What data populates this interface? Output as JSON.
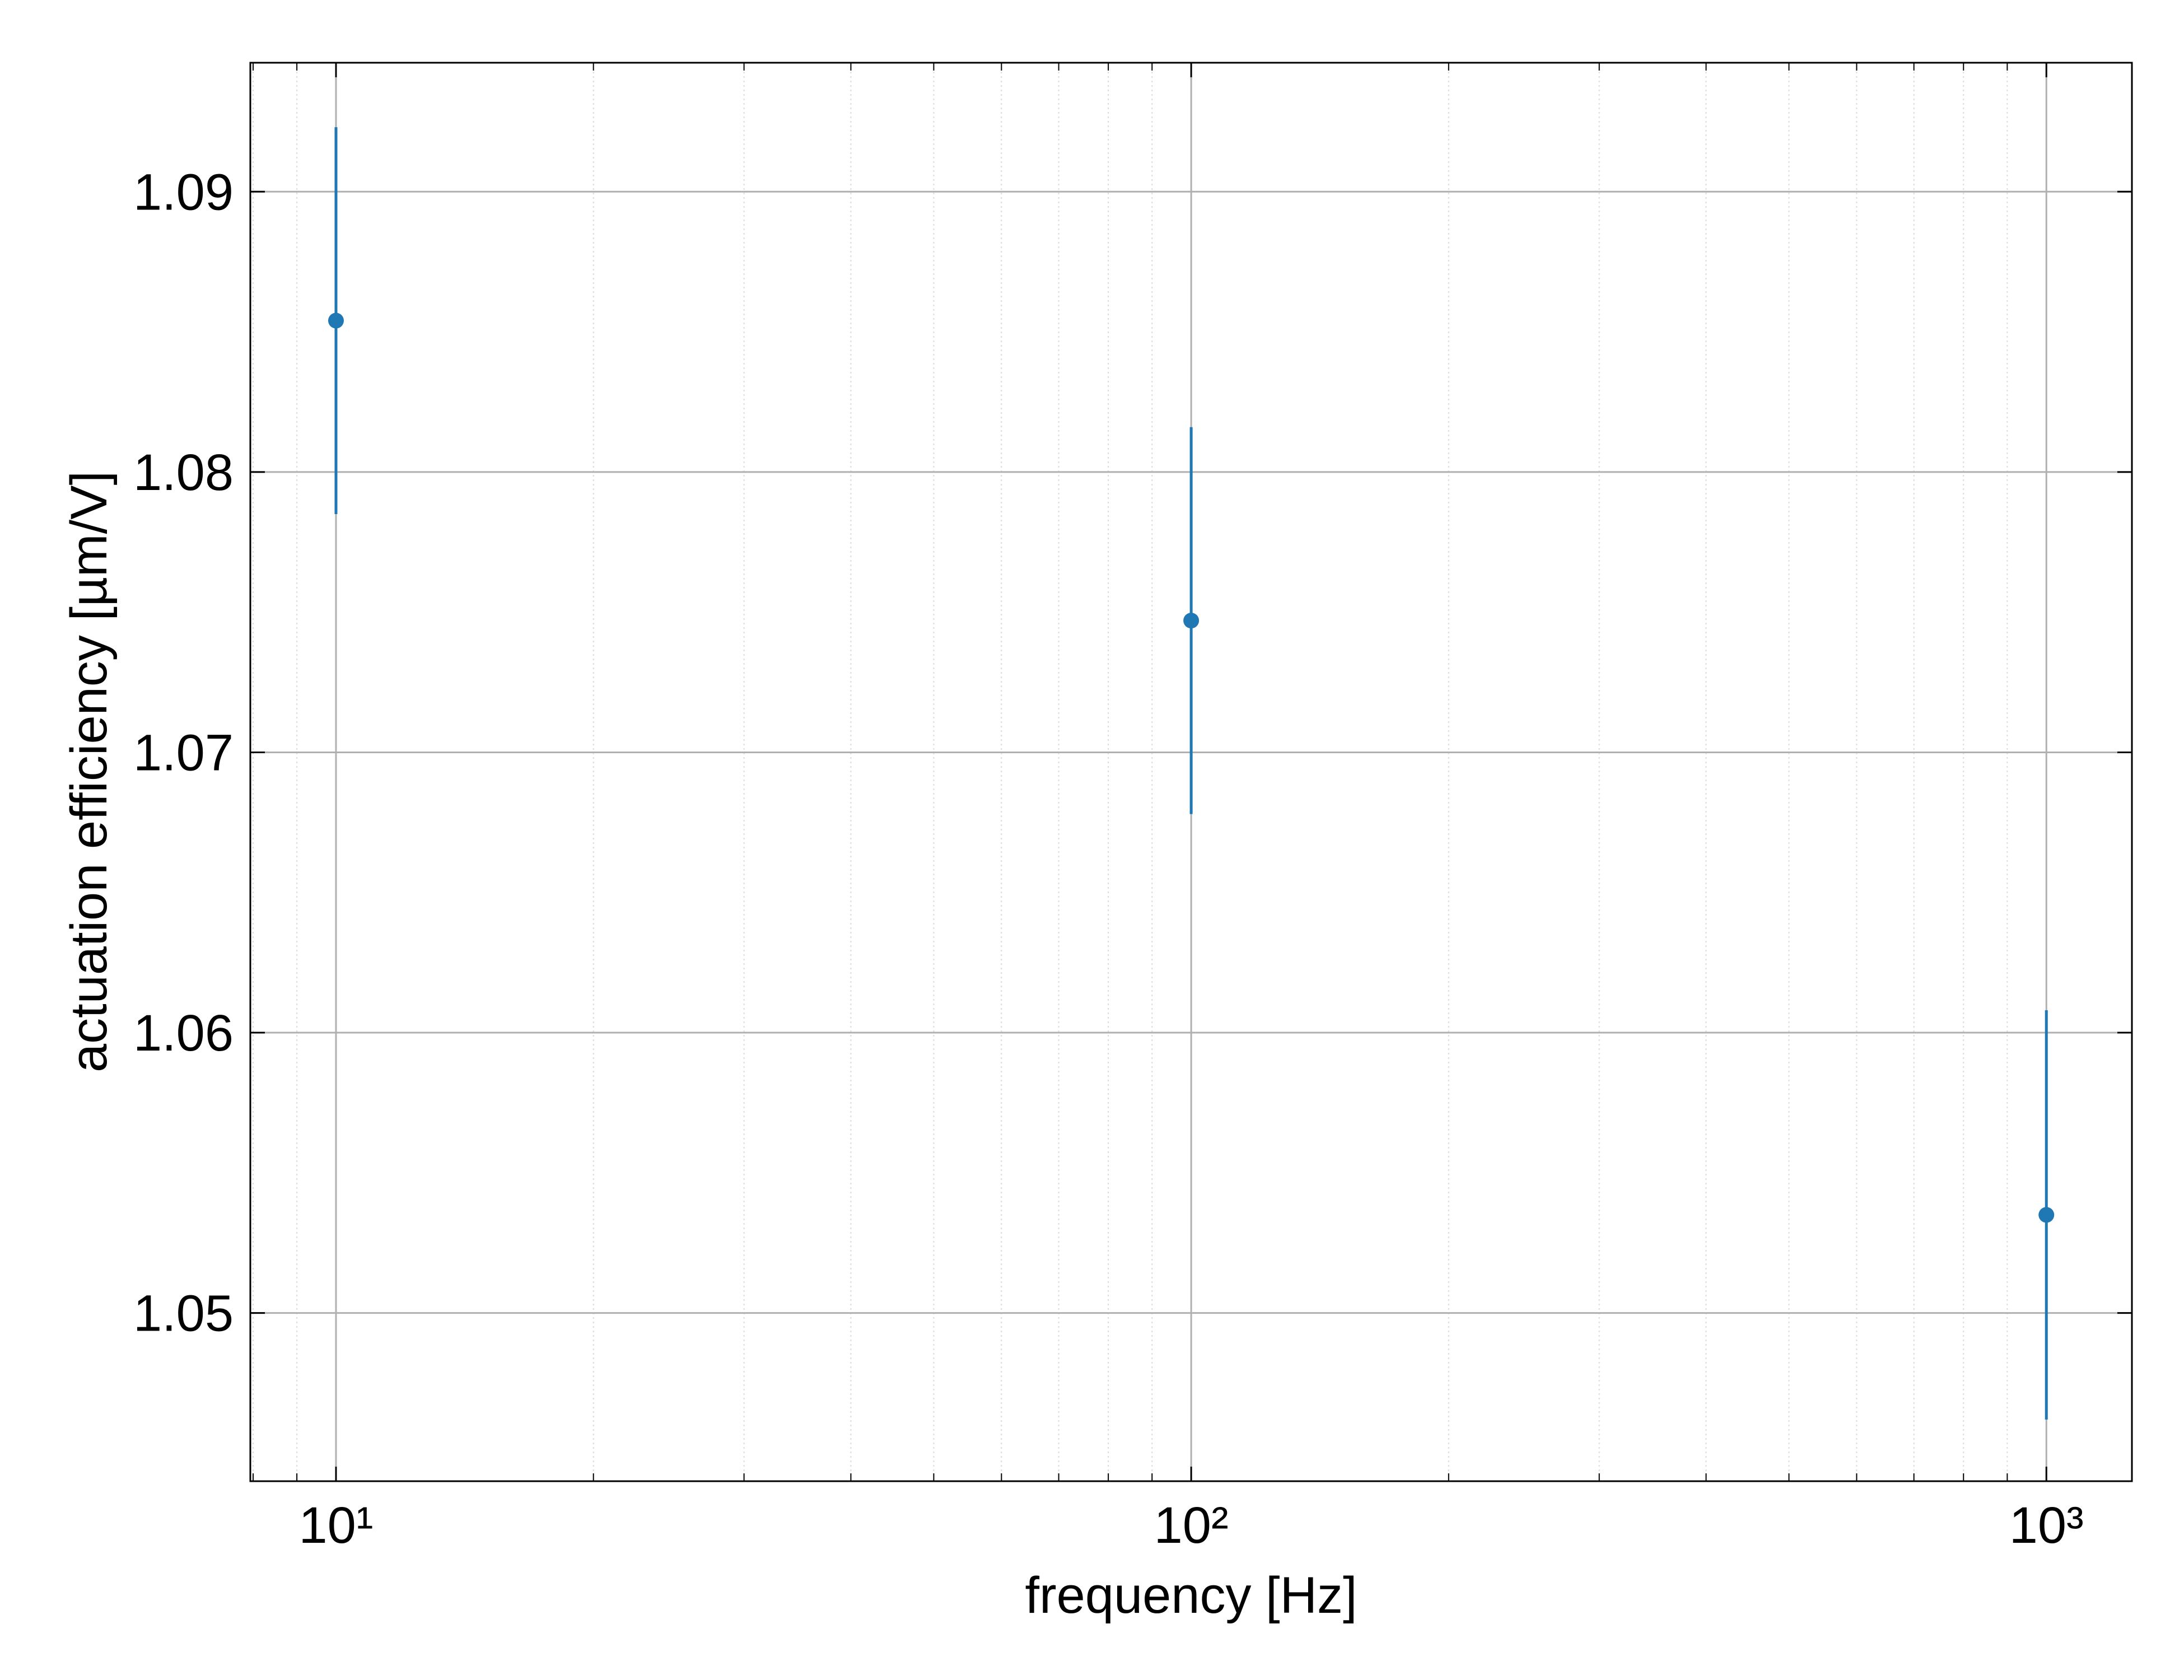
{
  "chart_data": {
    "type": "errorbar",
    "x_label": "frequency [Hz]",
    "y_label": "actuation efficiency [µm/V]",
    "x": [
      10,
      100,
      1000
    ],
    "values": [
      1.0854,
      1.0747,
      1.0535
    ],
    "errors": [
      0.0069,
      0.0069,
      0.0073
    ],
    "color": "#1f77b4",
    "xscale": "log",
    "xlim": [
      7.94,
      1259
    ],
    "xticks": [
      {
        "value": 10,
        "label": "10¹"
      },
      {
        "value": 100,
        "label": "10²"
      },
      {
        "value": 1000,
        "label": "10³"
      }
    ],
    "xminorticks": [
      8,
      9,
      20,
      30,
      40,
      50,
      60,
      70,
      80,
      90,
      200,
      300,
      400,
      500,
      600,
      700,
      800,
      900
    ],
    "ylim": [
      1.044,
      1.0946
    ],
    "yticks": [
      {
        "value": 1.05,
        "label": "1.05"
      },
      {
        "value": 1.06,
        "label": "1.06"
      },
      {
        "value": 1.07,
        "label": "1.07"
      },
      {
        "value": 1.08,
        "label": "1.08"
      },
      {
        "value": 1.09,
        "label": "1.09"
      }
    ],
    "grid": true
  }
}
